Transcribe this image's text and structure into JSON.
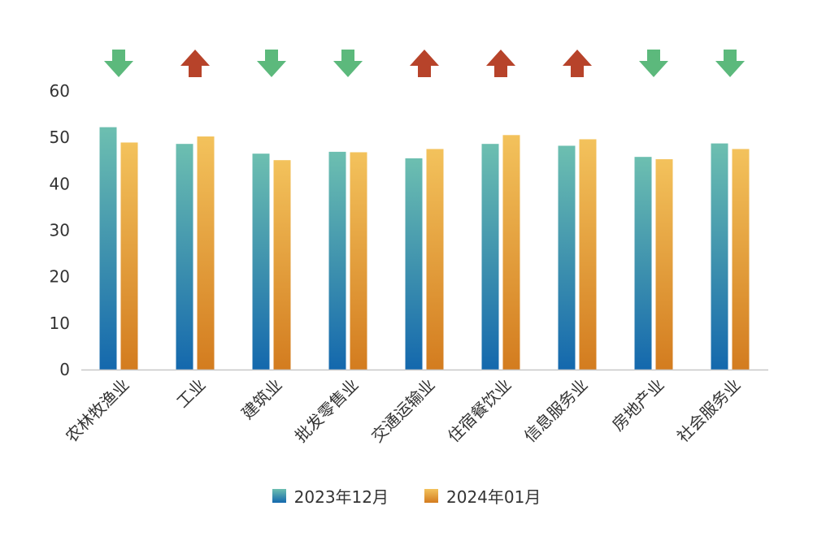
{
  "chart_data": {
    "type": "bar",
    "categories": [
      "农林牧渔业",
      "工业",
      "建筑业",
      "批发零售业",
      "交通运输业",
      "住宿餐饮业",
      "信息服务业",
      "房地产业",
      "社会服务业"
    ],
    "series": [
      {
        "name": "2023年12月",
        "values": [
          52.2,
          48.6,
          46.5,
          46.9,
          45.5,
          48.6,
          48.2,
          45.8,
          48.7
        ],
        "color_top": "#6dbfb0",
        "color_bottom": "#1468ad"
      },
      {
        "name": "2024年01月",
        "values": [
          48.9,
          50.2,
          45.1,
          46.8,
          47.5,
          50.5,
          49.6,
          45.3,
          47.5
        ],
        "color_top": "#f3c25c",
        "color_bottom": "#d37c1f"
      }
    ],
    "trend_arrows": [
      "down",
      "up",
      "down",
      "down",
      "up",
      "up",
      "up",
      "down",
      "down"
    ],
    "arrow_colors": {
      "up": "#b7432a",
      "down": "#5cb97c"
    },
    "y_ticks": [
      "0",
      "10",
      "20",
      "30",
      "40",
      "50",
      "60"
    ],
    "ylim": [
      0,
      60
    ],
    "grid": false,
    "legend_position": "bottom-center"
  }
}
